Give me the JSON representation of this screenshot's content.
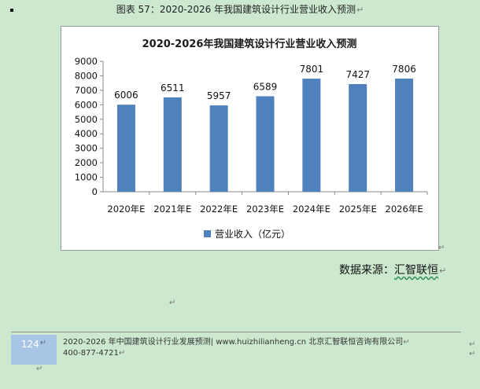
{
  "document": {
    "caption": "图表 57：2020-2026 年我国建筑设计行业营业收入预测",
    "paragraph_mark": "↵",
    "source_label": "数据来源：",
    "source_org": "汇智联恒"
  },
  "footer": {
    "page_number": "124",
    "line1": "2020-2026 年中国建筑设计行业发展预测| www.huizhilianheng.cn 北京汇智联恒咨询有限公司",
    "line2": "400-877-4721"
  },
  "chart_data": {
    "type": "bar",
    "title": "2020-2026年我国建筑设计行业营业收入预测",
    "categories": [
      "2020年E",
      "2021年E",
      "2022年E",
      "2023年E",
      "2024年E",
      "2025年E",
      "2026年E"
    ],
    "series": [
      {
        "name": "营业收入（亿元）",
        "values": [
          6006,
          6511,
          5957,
          6589,
          7801,
          7427,
          7806
        ],
        "color": "#4f81bd"
      }
    ],
    "data_labels": [
      "6006",
      "6511",
      "5957",
      "6589",
      "7801",
      "7427",
      "7806"
    ],
    "yticks": [
      "0",
      "1000",
      "2000",
      "3000",
      "4000",
      "5000",
      "6000",
      "7000",
      "8000",
      "9000"
    ],
    "ylim": [
      0,
      9000
    ],
    "grid": false,
    "legend_position": "bottom"
  }
}
